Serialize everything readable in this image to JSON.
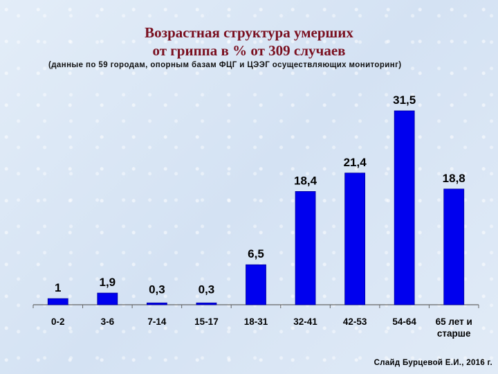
{
  "slide": {
    "title_line1": "Возрастная структура умерших",
    "title_line2": "от гриппа  в % от 309 случаев",
    "subtitle": "(данные по 59 городам, опорным базам ФЦГ и ЦЭЭГ осуществляющих мониторинг)",
    "footer": "Слайд Бурцевой Е.И., 2016 г."
  },
  "colors": {
    "bar": "#0000ee",
    "bar_edge": "#00009a",
    "axis": "#666666"
  },
  "chart_data": {
    "type": "bar",
    "title": "Возрастная структура умерших от гриппа  в % от 309 случаев",
    "categories": [
      "0-2",
      "3-6",
      "7-14",
      "15-17",
      "18-31",
      "32-41",
      "42-53",
      "54-64",
      "65 лет и старше"
    ],
    "category_lines": [
      [
        "0-2"
      ],
      [
        "3-6"
      ],
      [
        "7-14"
      ],
      [
        "15-17"
      ],
      [
        "18-31"
      ],
      [
        "32-41"
      ],
      [
        "42-53"
      ],
      [
        "54-64"
      ],
      [
        "65 лет и",
        "старше"
      ]
    ],
    "values": [
      1,
      1.9,
      0.3,
      0.3,
      6.5,
      18.4,
      21.4,
      31.5,
      18.8
    ],
    "value_labels": [
      "1",
      "1,9",
      "0,3",
      "0,3",
      "6,5",
      "18,4",
      "21,4",
      "31,5",
      "18,8"
    ],
    "ylim": [
      0,
      31.5
    ],
    "grid": false,
    "legend": "none"
  }
}
